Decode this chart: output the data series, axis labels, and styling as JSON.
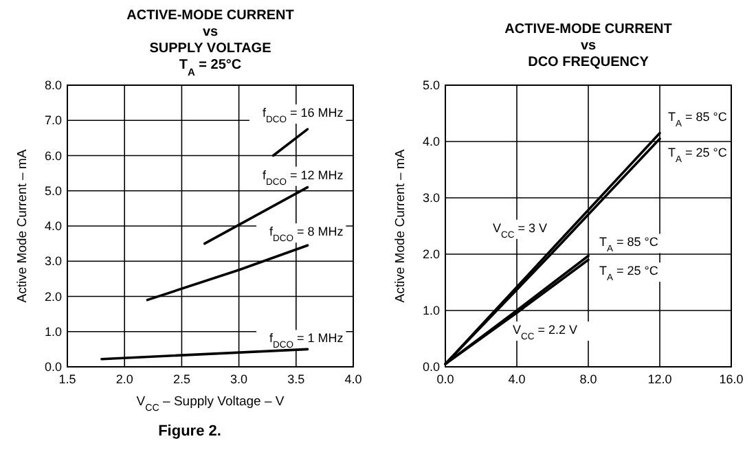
{
  "chart_data": [
    {
      "type": "line",
      "title": "ACTIVE-MODE CURRENT\nvs\nSUPPLY VOLTAGE\nT$_{A}$ = 25°C",
      "xlabel": "V$_{CC}$ – Supply Voltage – V",
      "ylabel": "Active Mode Current – mA",
      "xlim": [
        1.5,
        4.0
      ],
      "ylim": [
        0,
        8
      ],
      "xticks": [
        {
          "value": 1.5,
          "label": "1.5"
        },
        {
          "value": 2,
          "label": "2.0"
        },
        {
          "value": 2.5,
          "label": "2.5"
        },
        {
          "value": 3,
          "label": "3.0"
        },
        {
          "value": 3.5,
          "label": "3.5"
        },
        {
          "value": 4,
          "label": "4.0"
        }
      ],
      "yticks": [
        {
          "value": 0,
          "label": "0.0"
        },
        {
          "value": 1,
          "label": "1.0"
        },
        {
          "value": 2,
          "label": "2.0"
        },
        {
          "value": 3,
          "label": "3.0"
        },
        {
          "value": 4,
          "label": "4.0"
        },
        {
          "value": 5,
          "label": "5.0"
        },
        {
          "value": 6,
          "label": "6.0"
        },
        {
          "value": 7,
          "label": "7.0"
        },
        {
          "value": 8,
          "label": "8.0"
        }
      ],
      "grid": true,
      "series": [
        {
          "color": "#000000",
          "x": [
            3.3,
            3.6
          ],
          "values": [
            6.0,
            6.75
          ]
        },
        {
          "color": "#000000",
          "x": [
            2.7,
            3.6
          ],
          "values": [
            3.5,
            5.1
          ]
        },
        {
          "color": "#000000",
          "x": [
            2.2,
            3.0,
            3.6
          ],
          "values": [
            1.9,
            2.75,
            3.45
          ]
        },
        {
          "color": "#000000",
          "x": [
            1.8,
            3.6
          ],
          "values": [
            0.22,
            0.5
          ]
        }
      ],
      "annotations": [
        {
          "text": "f$_{DCO}$ = 16 MHz",
          "x": 3.6,
          "y": 6.75
        },
        {
          "text": "f$_{DCO}$ = 12 MHz",
          "x": 3.6,
          "y": 5.1
        },
        {
          "text": "f$_{DCO}$ = 8 MHz",
          "x": 3.6,
          "y": 3.45
        },
        {
          "text": "f$_{DCO}$ = 1 MHz",
          "x": 3.6,
          "y": 0.5
        },
        "Figure 2."
      ]
    },
    {
      "type": "line",
      "title": "ACTIVE-MODE CURRENT\nvs\nDCO FREQUENCY",
      "ylabel": "Active Mode Current – mA",
      "xlim": [
        0,
        16
      ],
      "ylim": [
        0,
        5
      ],
      "xticks": [
        {
          "value": 0,
          "label": "0.0"
        },
        {
          "value": 4,
          "label": "4.0"
        },
        {
          "value": 8,
          "label": "8.0"
        },
        {
          "value": 12,
          "label": "12.0"
        },
        {
          "value": 16,
          "label": "16.0"
        }
      ],
      "yticks": [
        {
          "value": 0,
          "label": "0.0"
        },
        {
          "value": 1,
          "label": "1.0"
        },
        {
          "value": 2,
          "label": "2.0"
        },
        {
          "value": 3,
          "label": "3.0"
        },
        {
          "value": 4,
          "label": "4.0"
        },
        {
          "value": 5,
          "label": "5.0"
        }
      ],
      "grid": true,
      "series": [
        {
          "color": "#000000",
          "x": [
            0,
            6,
            12
          ],
          "values": [
            0.05,
            2.1,
            4.15
          ]
        },
        {
          "color": "#000000",
          "x": [
            0,
            6,
            12
          ],
          "values": [
            0.05,
            2.03,
            4.05
          ]
        },
        {
          "color": "#000000",
          "x": [
            0,
            4,
            8
          ],
          "values": [
            0.05,
            1.0,
            1.97
          ]
        },
        {
          "color": "#000000",
          "x": [
            0,
            4,
            8
          ],
          "values": [
            0.05,
            0.96,
            1.9
          ]
        }
      ],
      "annotations": [
        {
          "text": "T$_{A}$ = 85 °C",
          "x": 12,
          "y": 4.15
        },
        {
          "text": "T$_{A}$ = 25 °C",
          "x": 12,
          "y": 4.05
        },
        {
          "text": "V$_{CC}$ = 3 V",
          "x": 6,
          "y": 2.1
        },
        {
          "text": "T$_{A}$ = 85 °C",
          "x": 8,
          "y": 1.97
        },
        {
          "text": "T$_{A}$ = 25 °C",
          "x": 8,
          "y": 1.9
        },
        {
          "text": "V$_{CC}$ = 2.2 V",
          "x": 4,
          "y": 1.0
        }
      ]
    }
  ]
}
